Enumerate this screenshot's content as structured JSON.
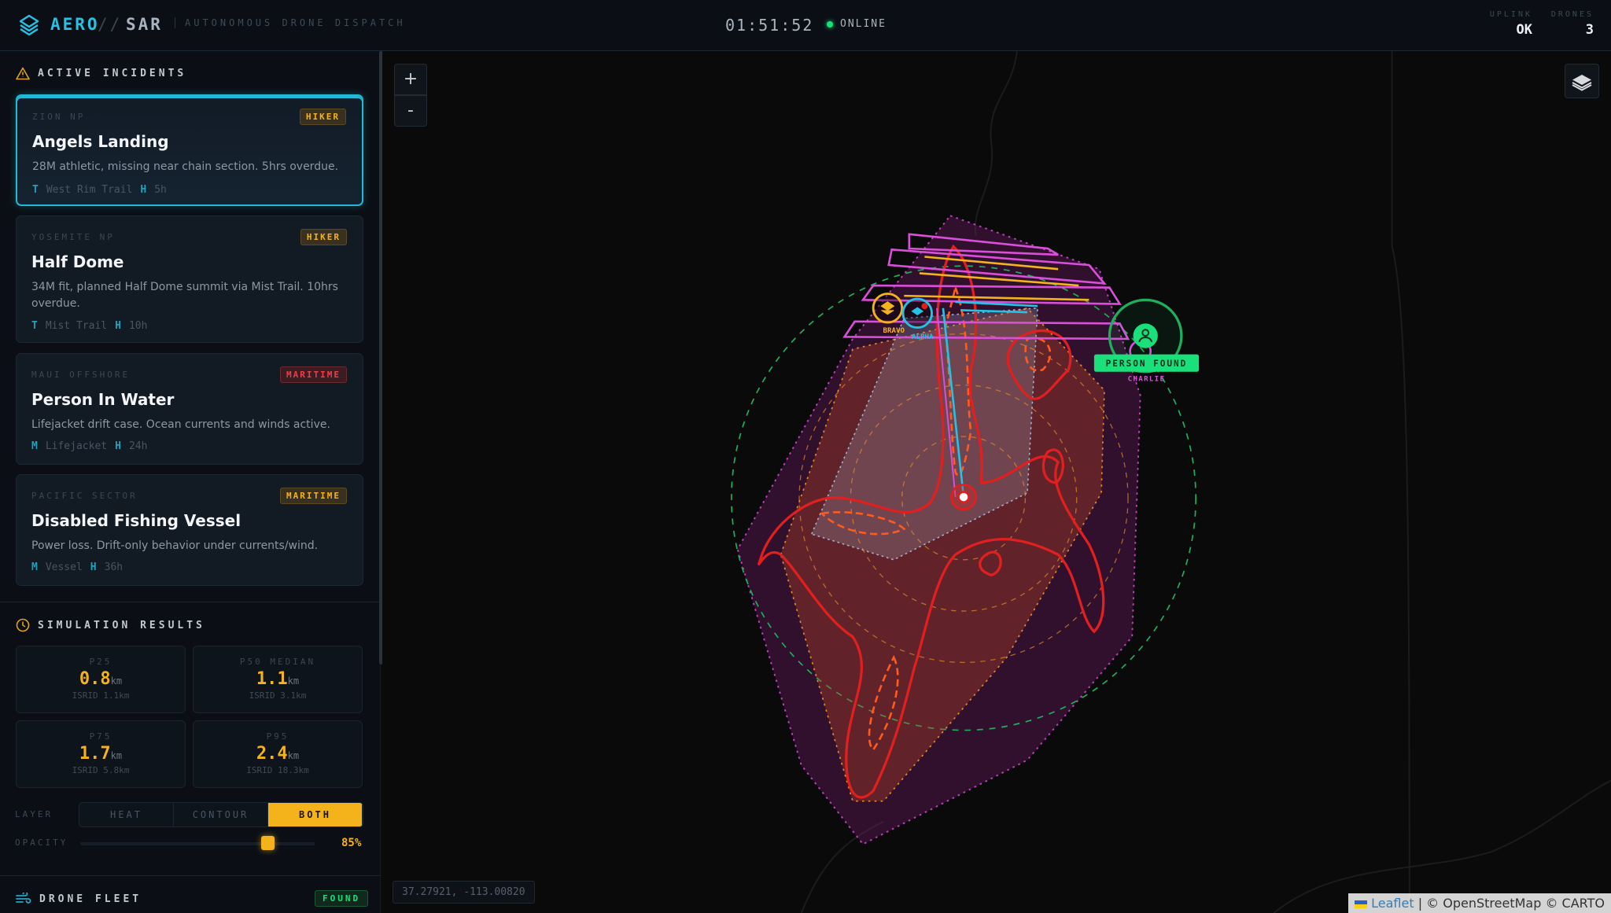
{
  "header": {
    "brand_a": "AERO",
    "brand_sep": "//",
    "brand_b": "SAR",
    "subtitle": "AUTONOMOUS DRONE DISPATCH",
    "clock": "01:51:52",
    "status": "ONLINE",
    "stats": [
      {
        "label": "UPLINK",
        "value": "OK"
      },
      {
        "label": "DRONES",
        "value": "3"
      }
    ]
  },
  "incidents": {
    "title": "ACTIVE INCIDENTS",
    "icon": "warning-triangle-icon",
    "items": [
      {
        "region": "ZION NP",
        "badge": "HIKER",
        "badge_color": "#f4b21b",
        "title": "Angels Landing",
        "desc": "28M athletic, missing near chain section. 5hrs overdue.",
        "meta": [
          {
            "k": "T",
            "v": "West Rim Trail"
          },
          {
            "k": "H",
            "v": "5h"
          }
        ],
        "active": true
      },
      {
        "region": "YOSEMITE NP",
        "badge": "HIKER",
        "badge_color": "#f4b21b",
        "title": "Half Dome",
        "desc": "34M fit, planned Half Dome summit via Mist Trail. 10hrs overdue.",
        "meta": [
          {
            "k": "T",
            "v": "Mist Trail"
          },
          {
            "k": "H",
            "v": "10h"
          }
        ]
      },
      {
        "region": "MAUI OFFSHORE",
        "badge": "MARITIME",
        "badge_color": "#ef3e45",
        "title": "Person In Water",
        "desc": "Lifejacket drift case. Ocean currents and winds active.",
        "meta": [
          {
            "k": "M",
            "v": "Lifejacket"
          },
          {
            "k": "H",
            "v": "24h"
          }
        ]
      },
      {
        "region": "PACIFIC SECTOR",
        "badge": "MARITIME",
        "badge_color": "#f4b21b",
        "title": "Disabled Fishing Vessel",
        "desc": "Power loss. Drift-only behavior under currents/wind.",
        "meta": [
          {
            "k": "M",
            "v": "Vessel"
          },
          {
            "k": "H",
            "v": "36h"
          }
        ]
      }
    ]
  },
  "simulation": {
    "title": "SIMULATION RESULTS",
    "icon": "clock-icon",
    "unit": "km",
    "tiles": [
      {
        "label": "P25",
        "value": "0.8",
        "isrid": "ISRID 1.1km"
      },
      {
        "label": "P50 MEDIAN",
        "value": "1.1",
        "isrid": "ISRID 3.1km"
      },
      {
        "label": "P75",
        "value": "1.7",
        "isrid": "ISRID 5.8km"
      },
      {
        "label": "P95",
        "value": "2.4",
        "isrid": "ISRID 18.3km"
      }
    ],
    "layer_label": "LAYER",
    "layers": [
      "HEAT",
      "CONTOUR",
      "BOTH"
    ],
    "layer_selected": "BOTH",
    "opacity_label": "OPACITY",
    "opacity": "85%",
    "opacity_value": 0.85
  },
  "fleet": {
    "title": "DRONE FLEET",
    "icon": "wind-icon",
    "badge": "FOUND"
  },
  "map": {
    "zoom_in": "+",
    "zoom_out": "-",
    "coords": "37.27921, -113.00820",
    "attribution": {
      "leaflet": "Leaflet",
      "rest": "| © OpenStreetMap © CARTO"
    },
    "drones": [
      {
        "name": "BRAVO",
        "color": "#f4b21b"
      },
      {
        "name": "ALPHA",
        "color": "#22c3e6"
      },
      {
        "name": "CHARLIE",
        "color": "#d24fd2"
      }
    ],
    "found_label": "PERSON FOUND",
    "colors": {
      "hull": "#c03fc0",
      "contour": "#e21f1f",
      "lane": "#d94fd9",
      "search_ring": "#1fae5e",
      "found": "#19e07a"
    }
  }
}
